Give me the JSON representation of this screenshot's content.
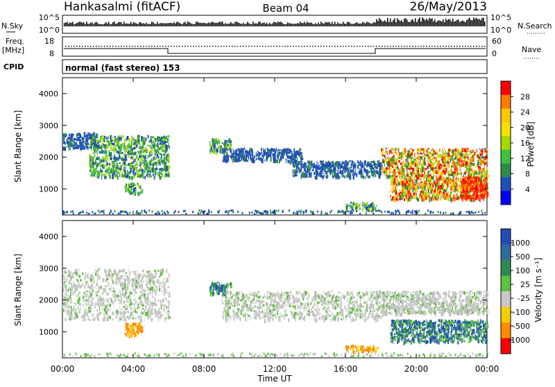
{
  "header": {
    "station": "Hankasalmi (fitACF)",
    "beam": "Beam 04",
    "date": "26/May/2013"
  },
  "summary_panel": {
    "nsky_label": "N.Sky",
    "nsky_ticks": [
      "10^5",
      "10^0"
    ],
    "nsearch_label": "N.Search",
    "nsearch_ticks": [
      "10^5",
      "10^0"
    ],
    "freq_label_line1": "Freq.",
    "freq_label_line2": "[MHz]",
    "freq_ticks": [
      "18",
      "8"
    ],
    "nave_label": "Nave",
    "nave_ticks": [
      "60",
      "0"
    ],
    "cpid_label": "CPID",
    "cpid_text": "normal (fast stereo) 153"
  },
  "chart_data": [
    {
      "type": "heatmap",
      "panel": "power",
      "ylabel": "Slant Range [km]",
      "xlabel": "",
      "yticks": [
        "1000",
        "2000",
        "3000",
        "4000"
      ],
      "ylim": [
        180,
        4500
      ],
      "colorbar_label": "Power [dB]",
      "colorbar_ticks": [
        "28",
        "24",
        "20",
        "16",
        "12",
        "8",
        "4"
      ],
      "colorbar_colors": [
        "#ff0000",
        "#ff7a00",
        "#ffc800",
        "#f5e000",
        "#a8d800",
        "#40c040",
        "#2f8a4f",
        "#1e4fb8",
        "#0000ff"
      ],
      "echo_regions": [
        {
          "t": [
            0.0,
            2.0
          ],
          "r": [
            2300,
            2800
          ],
          "level": "weak"
        },
        {
          "t": [
            1.5,
            6.0
          ],
          "r": [
            1400,
            2700
          ],
          "level": "moderate"
        },
        {
          "t": [
            3.5,
            4.5
          ],
          "r": [
            900,
            1200
          ],
          "level": "moderate"
        },
        {
          "t": [
            8.3,
            9.5
          ],
          "r": [
            2200,
            2600
          ],
          "level": "moderate"
        },
        {
          "t": [
            9.0,
            13.5
          ],
          "r": [
            1900,
            2300
          ],
          "level": "weak"
        },
        {
          "t": [
            13.0,
            18.0
          ],
          "r": [
            1400,
            1900
          ],
          "level": "weak"
        },
        {
          "t": [
            16.0,
            17.8
          ],
          "r": [
            400,
            600
          ],
          "level": "moderate"
        },
        {
          "t": [
            18.0,
            24.0
          ],
          "r": [
            1400,
            2300
          ],
          "level": "strong"
        },
        {
          "t": [
            18.5,
            24.0
          ],
          "r": [
            700,
            1400
          ],
          "level": "strong"
        },
        {
          "t": [
            22.5,
            24.0
          ],
          "r": [
            700,
            1400
          ],
          "level": "very strong"
        }
      ]
    },
    {
      "type": "heatmap",
      "panel": "velocity",
      "ylabel": "Slant Range [km]",
      "xlabel": "Time UT",
      "yticks": [
        "1000",
        "2000",
        "3000",
        "4000"
      ],
      "ylim": [
        180,
        4500
      ],
      "xticks": [
        "00:00",
        "04:00",
        "08:00",
        "12:00",
        "16:00",
        "20:00",
        "00:00"
      ],
      "colorbar_label": "Velocity [m s⁻¹]",
      "colorbar_ticks": [
        "1000",
        "500",
        "100",
        "25",
        "-25",
        "-100",
        "-500",
        "-1000"
      ],
      "colorbar_colors": [
        "#1e4fb8",
        "#2f6aa0",
        "#2f8a4f",
        "#60c040",
        "#c8c8c8",
        "#f5d000",
        "#ff8c00",
        "#ff0000"
      ],
      "echo_regions": [
        {
          "t": [
            0.0,
            6.0
          ],
          "r": [
            1400,
            3000
          ],
          "level": "ground-scatter"
        },
        {
          "t": [
            3.5,
            4.5
          ],
          "r": [
            900,
            1300
          ],
          "level": "negative"
        },
        {
          "t": [
            8.3,
            9.5
          ],
          "r": [
            2200,
            2600
          ],
          "level": "positive"
        },
        {
          "t": [
            9.0,
            18.0
          ],
          "r": [
            1400,
            2300
          ],
          "level": "ground-scatter"
        },
        {
          "t": [
            16.0,
            17.8
          ],
          "r": [
            400,
            600
          ],
          "level": "negative"
        },
        {
          "t": [
            18.0,
            24.0
          ],
          "r": [
            1600,
            2300
          ],
          "level": "ground-scatter"
        },
        {
          "t": [
            18.5,
            24.0
          ],
          "r": [
            700,
            1400
          ],
          "level": "positive"
        }
      ]
    }
  ]
}
